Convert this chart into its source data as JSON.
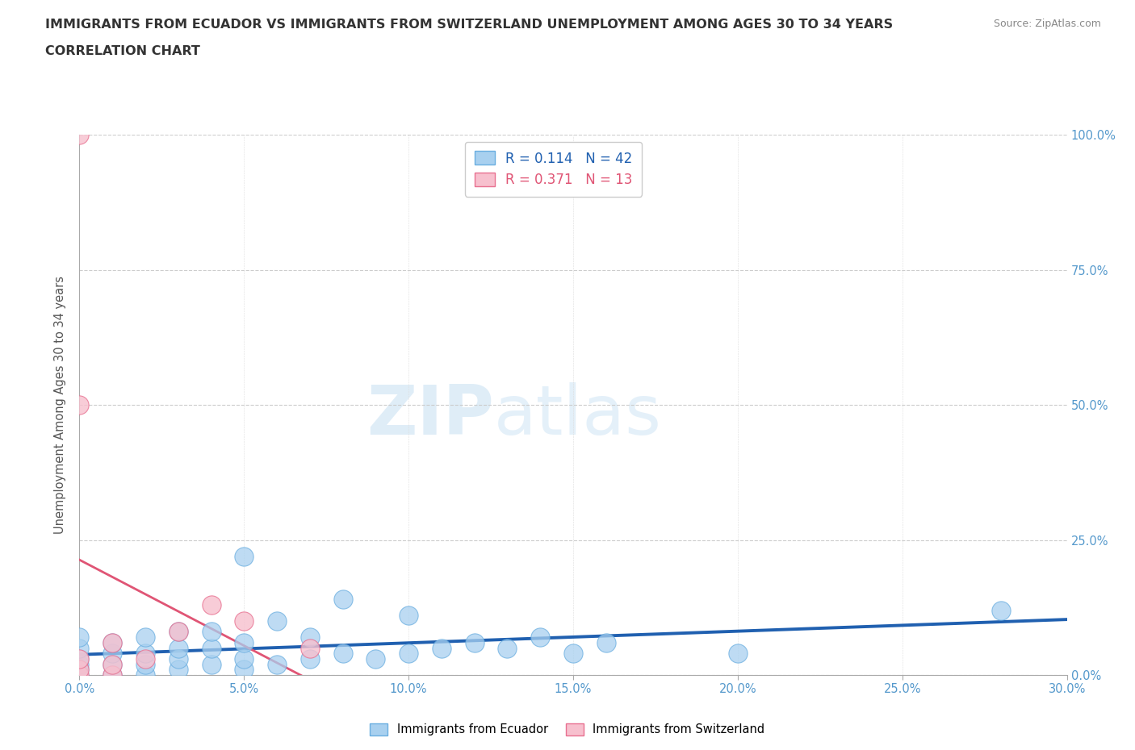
{
  "title_line1": "IMMIGRANTS FROM ECUADOR VS IMMIGRANTS FROM SWITZERLAND UNEMPLOYMENT AMONG AGES 30 TO 34 YEARS",
  "title_line2": "CORRELATION CHART",
  "source": "Source: ZipAtlas.com",
  "ylabel": "Unemployment Among Ages 30 to 34 years",
  "xlim": [
    0.0,
    0.3
  ],
  "ylim": [
    0.0,
    1.0
  ],
  "xtick_vals": [
    0.0,
    0.05,
    0.1,
    0.15,
    0.2,
    0.25,
    0.3
  ],
  "ytick_vals": [
    0.0,
    0.25,
    0.5,
    0.75,
    1.0
  ],
  "ecuador_color": "#a8d0ef",
  "ecuador_edge": "#6aaee0",
  "switzerland_color": "#f7c0ce",
  "switzerland_edge": "#e87090",
  "ecuador_R": 0.114,
  "ecuador_N": 42,
  "switzerland_R": 0.371,
  "switzerland_N": 13,
  "ecuador_line_color": "#2060b0",
  "switzerland_line_color": "#e05575",
  "watermark_zip": "ZIP",
  "watermark_atlas": "atlas",
  "ecuador_x": [
    0.0,
    0.0,
    0.0,
    0.0,
    0.0,
    0.0,
    0.01,
    0.01,
    0.01,
    0.01,
    0.02,
    0.02,
    0.02,
    0.02,
    0.03,
    0.03,
    0.03,
    0.03,
    0.04,
    0.04,
    0.04,
    0.05,
    0.05,
    0.05,
    0.05,
    0.06,
    0.06,
    0.07,
    0.07,
    0.08,
    0.08,
    0.09,
    0.1,
    0.1,
    0.11,
    0.12,
    0.13,
    0.14,
    0.15,
    0.16,
    0.2,
    0.28
  ],
  "ecuador_y": [
    0.0,
    0.01,
    0.02,
    0.03,
    0.05,
    0.07,
    0.0,
    0.02,
    0.04,
    0.06,
    0.0,
    0.02,
    0.04,
    0.07,
    0.01,
    0.03,
    0.05,
    0.08,
    0.02,
    0.05,
    0.08,
    0.01,
    0.03,
    0.06,
    0.22,
    0.02,
    0.1,
    0.03,
    0.07,
    0.04,
    0.14,
    0.03,
    0.04,
    0.11,
    0.05,
    0.06,
    0.05,
    0.07,
    0.04,
    0.06,
    0.04,
    0.12
  ],
  "switzerland_x": [
    0.0,
    0.0,
    0.0,
    0.0,
    0.0,
    0.01,
    0.01,
    0.01,
    0.02,
    0.03,
    0.04,
    0.05,
    0.07
  ],
  "switzerland_y": [
    0.0,
    0.01,
    0.03,
    0.5,
    1.0,
    0.0,
    0.02,
    0.06,
    0.03,
    0.08,
    0.13,
    0.1,
    0.05
  ]
}
